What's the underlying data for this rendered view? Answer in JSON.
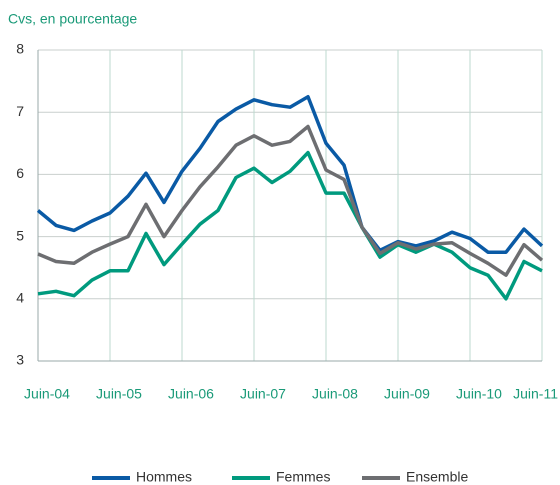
{
  "chart_data": {
    "type": "line",
    "y_axis_label": "Cvs, en pourcentage",
    "categories": [
      "Juin-04",
      null,
      null,
      null,
      "Juin-05",
      null,
      null,
      null,
      "Juin-06",
      null,
      null,
      null,
      "Juin-07",
      null,
      null,
      null,
      "Juin-08",
      null,
      null,
      null,
      "Juin-09",
      null,
      null,
      null,
      "Juin-10",
      null,
      null,
      null,
      "Juin-11"
    ],
    "series": [
      {
        "name": "Hommes",
        "color": "#0a5aa5",
        "values": [
          5.42,
          5.18,
          5.1,
          5.25,
          5.38,
          5.65,
          6.02,
          5.55,
          6.05,
          6.42,
          6.85,
          7.05,
          7.2,
          7.12,
          7.08,
          7.25,
          6.5,
          6.15,
          5.15,
          4.78,
          4.92,
          4.85,
          4.93,
          5.07,
          4.97,
          4.75,
          4.75,
          5.12,
          4.85
        ]
      },
      {
        "name": "Femmes",
        "color": "#009a7e",
        "values": [
          4.08,
          4.12,
          4.05,
          4.3,
          4.45,
          4.45,
          5.05,
          4.55,
          4.88,
          5.2,
          5.42,
          5.95,
          6.1,
          5.87,
          6.05,
          6.35,
          5.7,
          5.7,
          5.15,
          4.67,
          4.87,
          4.75,
          4.88,
          4.75,
          4.5,
          4.38,
          4.0,
          4.6,
          4.45
        ]
      },
      {
        "name": "Ensemble",
        "color": "#6d6e71",
        "values": [
          4.72,
          4.6,
          4.57,
          4.75,
          4.88,
          5.0,
          5.52,
          5.0,
          5.42,
          5.8,
          6.12,
          6.47,
          6.62,
          6.47,
          6.53,
          6.77,
          6.07,
          5.92,
          5.15,
          4.73,
          4.9,
          4.8,
          4.88,
          4.9,
          4.73,
          4.57,
          4.38,
          4.87,
          4.62
        ]
      }
    ],
    "ylim": [
      3,
      8
    ],
    "yticks": [
      3,
      4,
      5,
      6,
      7,
      8
    ],
    "grid": true,
    "legend": "bottom"
  }
}
